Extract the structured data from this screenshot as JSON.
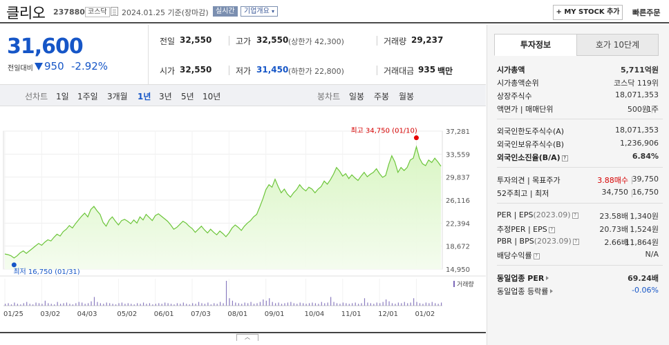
{
  "header": {
    "stock_name": "클리오",
    "stock_code": "237880",
    "market_badge": "코스닥",
    "date_text": "2024.01.25  기준(장마감)",
    "realtime_label": "실시간",
    "corp_overview_label": "기업개요",
    "my_stock_button": "+ MY STOCK 추가",
    "quick_order": "빠른주문"
  },
  "summary": {
    "current_price": "31,600",
    "change_label": "전일대비",
    "change_value": "950",
    "change_percent": "-2.92%",
    "prev_close_label": "전일",
    "prev_close": "32,550",
    "high_label": "고가",
    "high": "32,550",
    "high_sub": "(상한가 42,300)",
    "volume_label": "거래량",
    "volume": "29,237",
    "open_label": "시가",
    "open": "32,550",
    "low_label": "저가",
    "low": "31,450",
    "low_sub": "(하한가 22,800)",
    "amount_label": "거래대금",
    "amount": "935",
    "amount_unit": "백만"
  },
  "periods": {
    "line_chart_label": "선차트",
    "line_items": [
      "1일",
      "1주일",
      "3개월",
      "1년",
      "3년",
      "5년",
      "10년"
    ],
    "active": "1년",
    "candle_chart_label": "봉차트",
    "candle_items": [
      "일봉",
      "주봉",
      "월봉"
    ]
  },
  "chart_data": {
    "type": "area",
    "y_ticks": [
      "37,281",
      "33,559",
      "29,837",
      "26,116",
      "22,394",
      "18,672",
      "14,950"
    ],
    "ylim": [
      14950,
      37281
    ],
    "x_ticks": [
      "01/25",
      "03/02",
      "04/03",
      "05/02",
      "06/01",
      "07/03",
      "08/01",
      "09/01",
      "10/04",
      "11/01",
      "12/01",
      "01/02"
    ],
    "values": [
      17400,
      17300,
      17100,
      16750,
      17100,
      17600,
      17900,
      17500,
      17900,
      18300,
      18700,
      19100,
      18800,
      19300,
      19700,
      19500,
      20100,
      20600,
      20300,
      21000,
      21400,
      22000,
      21600,
      22300,
      22900,
      23500,
      24000,
      23400,
      24600,
      25100,
      24400,
      23800,
      22500,
      21900,
      22900,
      23400,
      22700,
      22100,
      22800,
      23000,
      22700,
      22300,
      22900,
      22400,
      23400,
      22900,
      23800,
      23300,
      22800,
      23600,
      23900,
      23500,
      23100,
      22700,
      22100,
      21400,
      21700,
      22200,
      22700,
      22400,
      21900,
      21500,
      20900,
      21400,
      21900,
      21300,
      20800,
      21400,
      20900,
      20500,
      21100,
      20700,
      20200,
      20800,
      21600,
      22100,
      21700,
      21200,
      21900,
      22400,
      22800,
      23400,
      23800,
      25000,
      26300,
      27800,
      28600,
      28200,
      29500,
      28300,
      27300,
      27900,
      27100,
      26600,
      27300,
      27800,
      28600,
      28000,
      27600,
      28200,
      27900,
      27300,
      27900,
      28300,
      29200,
      28700,
      29400,
      30300,
      31400,
      30800,
      30000,
      30400,
      29600,
      30200,
      29700,
      29300,
      30000,
      30600,
      29900,
      30300,
      30600,
      31200,
      30400,
      29800,
      30100,
      31900,
      33300,
      32300,
      30600,
      31400,
      30900,
      31400,
      32600,
      32900,
      34750,
      32900,
      32000,
      31700,
      32600,
      32200,
      32900,
      32300,
      31600
    ],
    "high_label": "최고  34,750 (01/10)",
    "low_label": "최저  16,750 (01/31)",
    "volume_legend": "거래량",
    "volume_values": [
      3,
      4,
      2,
      5,
      3,
      2,
      4,
      6,
      3,
      2,
      5,
      4,
      3,
      8,
      4,
      3,
      2,
      6,
      3,
      4,
      5,
      3,
      2,
      4,
      6,
      5,
      3,
      4,
      7,
      14,
      6,
      4,
      3,
      5,
      4,
      3,
      2,
      4,
      5,
      3,
      4,
      3,
      2,
      4,
      3,
      5,
      3,
      4,
      2,
      3,
      4,
      3,
      5,
      4,
      3,
      2,
      4,
      3,
      5,
      3,
      2,
      4,
      3,
      6,
      4,
      3,
      5,
      2,
      4,
      3,
      6,
      4,
      40,
      12,
      8,
      5,
      4,
      3,
      5,
      4,
      6,
      3,
      4,
      6,
      10,
      8,
      12,
      6,
      4,
      5,
      3,
      4,
      5,
      6,
      4,
      3,
      5,
      4,
      3,
      4,
      5,
      4,
      3,
      6,
      4,
      5,
      14,
      6,
      4,
      3,
      5,
      4,
      3,
      4,
      5,
      3,
      4,
      12,
      5,
      4,
      3,
      5,
      4,
      6,
      10,
      7,
      4,
      3,
      5,
      4,
      6,
      4,
      5,
      12,
      6,
      4,
      3,
      5,
      4,
      6,
      4,
      3,
      5
    ]
  },
  "invest_info": {
    "tab_active": "투자정보",
    "tab_inactive": "호가 10단계",
    "market_cap_label": "시가총액",
    "market_cap": "5,711억원",
    "cap_rank_label": "시가총액순위",
    "cap_rank": "코스닥 119위",
    "shares_label": "상장주식수",
    "shares": "18,071,353",
    "par_label": "액면가 | 매매단위",
    "par": "500원",
    "unit": "1주",
    "foreign_limit_label": "외국인한도주식수(A)",
    "foreign_limit": "18,071,353",
    "foreign_hold_label": "외국인보유주식수(B)",
    "foreign_hold": "1,236,906",
    "foreign_ratio_label": "외국인소진율(B/A)",
    "foreign_ratio": "6.84%",
    "opinion_label": "투자의견 | 목표주가",
    "opinion": "3.88매수",
    "target": "39,750",
    "week52_label": "52주최고 | 최저",
    "week52_high": "34,750",
    "week52_low": "16,750",
    "per_label": "PER | EPS",
    "per_date": "(2023.09)",
    "per": "23.58배",
    "eps": "1,340원",
    "est_per_label": "추정PER | EPS",
    "est_per": "20.73배",
    "est_eps": "1,524원",
    "pbr_label": "PBR | BPS",
    "pbr_date": "(2023.09)",
    "pbr": "2.66배",
    "bps": "11,864원",
    "dividend_label": "배당수익률",
    "dividend": "N/A",
    "sector_per_label": "동일업종 PER",
    "sector_per": "69.24배",
    "sector_change_label": "동일업종 등락률",
    "sector_change": "-0.06%"
  }
}
